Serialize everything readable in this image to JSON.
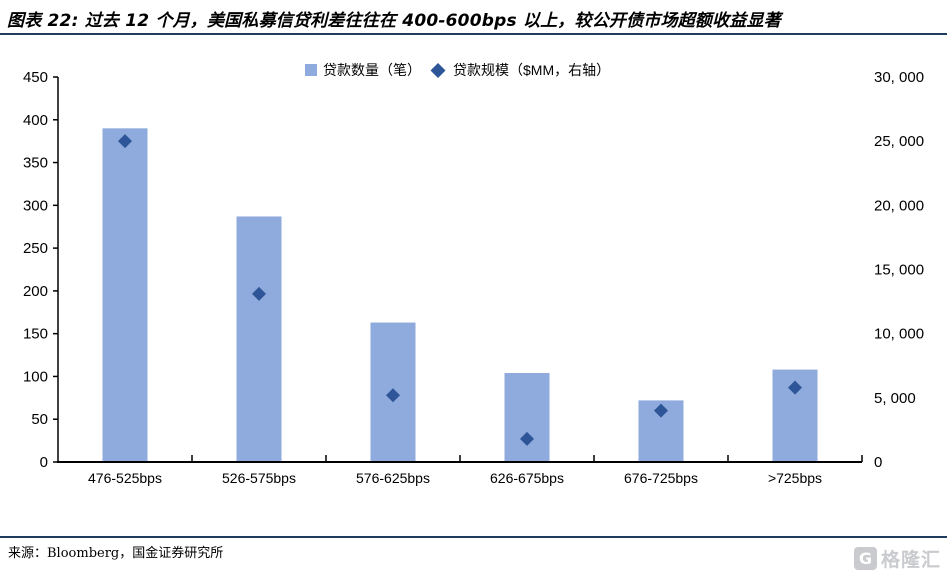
{
  "figure": {
    "title": "图表 22: 过去 12 个月，美国私募信贷利差往往在 400-600bps 以上，较公开债市场超额收益显著",
    "source": "来源：Bloomberg，国金证券研究所",
    "watermark": {
      "icon_letter": "G",
      "text": "格隆汇"
    }
  },
  "colors": {
    "bar": "#8FAADC",
    "diamond": "#2E5597",
    "rule": "#1F3B5D",
    "axis": "#000000",
    "watermark": "#C9CBCE"
  },
  "chart_data": {
    "type": "bar",
    "title": "",
    "categories": [
      "476-525bps",
      "526-575bps",
      "576-625bps",
      "626-675bps",
      "676-725bps",
      ">725bps"
    ],
    "series": [
      {
        "name": "贷款数量（笔）",
        "type": "bar",
        "axis": "left",
        "marker": "square",
        "values": [
          390,
          287,
          163,
          104,
          72,
          108
        ]
      },
      {
        "name": "贷款规模（$MM，右轴）",
        "type": "scatter",
        "axis": "right",
        "marker": "diamond",
        "values": [
          25000,
          13100,
          5200,
          1800,
          4000,
          5800
        ]
      }
    ],
    "left_axis": {
      "min": 0,
      "max": 450,
      "step": 50,
      "tick_labels": [
        "0",
        "50",
        "100",
        "150",
        "200",
        "250",
        "300",
        "350",
        "400",
        "450"
      ]
    },
    "right_axis": {
      "min": 0,
      "max": 30000,
      "step": 5000,
      "tick_labels": [
        "0",
        "5, 000",
        "10, 000",
        "15, 000",
        "20, 000",
        "25, 000",
        "30, 000"
      ]
    },
    "legend_position": "top-center",
    "grid": false
  }
}
